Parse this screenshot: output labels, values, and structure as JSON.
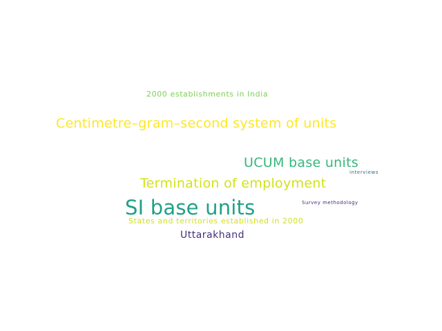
{
  "words": [
    {
      "text": "2000 establishments in India",
      "color": "#7ad151"
    },
    {
      "text": "Centimetre–gram–second system of units",
      "color": "#fde725"
    },
    {
      "text": "UCUM base units",
      "color": "#35b779"
    },
    {
      "text": "interviews",
      "color": "#31688e"
    },
    {
      "text": "Termination of employment",
      "color": "#d2e21b"
    },
    {
      "text": "SI base units",
      "color": "#1fa187"
    },
    {
      "text": "Survey methodology",
      "color": "#482878"
    },
    {
      "text": "States and territories established in 2000",
      "color": "#d0e11c"
    },
    {
      "text": "Uttarakhand",
      "color": "#472d7b"
    }
  ]
}
